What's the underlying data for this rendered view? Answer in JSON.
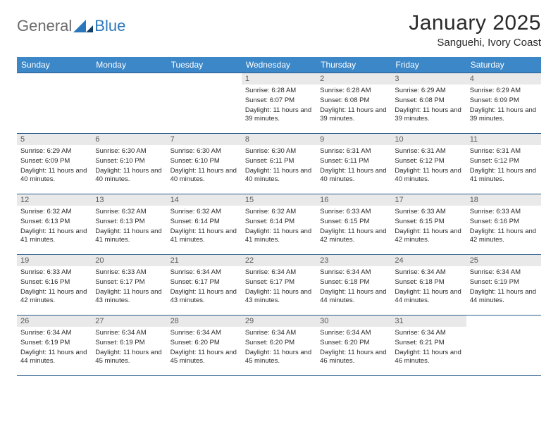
{
  "logo": {
    "general": "General",
    "blue": "Blue"
  },
  "title": "January 2025",
  "location": "Sanguehi, Ivory Coast",
  "colors": {
    "header_bg": "#3b87c8",
    "header_text": "#ffffff",
    "border": "#2c5d8a",
    "daynum_bg": "#e9e9e9",
    "daynum_text": "#5a5a5a",
    "body_text": "#2a2a2a",
    "logo_gray": "#6b6b6b",
    "logo_blue": "#2b77bb"
  },
  "weekdays": [
    "Sunday",
    "Monday",
    "Tuesday",
    "Wednesday",
    "Thursday",
    "Friday",
    "Saturday"
  ],
  "weeks": [
    [
      {
        "day": null
      },
      {
        "day": null
      },
      {
        "day": null
      },
      {
        "day": "1",
        "sunrise": "6:28 AM",
        "sunset": "6:07 PM",
        "daylight": "11 hours and 39 minutes."
      },
      {
        "day": "2",
        "sunrise": "6:28 AM",
        "sunset": "6:08 PM",
        "daylight": "11 hours and 39 minutes."
      },
      {
        "day": "3",
        "sunrise": "6:29 AM",
        "sunset": "6:08 PM",
        "daylight": "11 hours and 39 minutes."
      },
      {
        "day": "4",
        "sunrise": "6:29 AM",
        "sunset": "6:09 PM",
        "daylight": "11 hours and 39 minutes."
      }
    ],
    [
      {
        "day": "5",
        "sunrise": "6:29 AM",
        "sunset": "6:09 PM",
        "daylight": "11 hours and 40 minutes."
      },
      {
        "day": "6",
        "sunrise": "6:30 AM",
        "sunset": "6:10 PM",
        "daylight": "11 hours and 40 minutes."
      },
      {
        "day": "7",
        "sunrise": "6:30 AM",
        "sunset": "6:10 PM",
        "daylight": "11 hours and 40 minutes."
      },
      {
        "day": "8",
        "sunrise": "6:30 AM",
        "sunset": "6:11 PM",
        "daylight": "11 hours and 40 minutes."
      },
      {
        "day": "9",
        "sunrise": "6:31 AM",
        "sunset": "6:11 PM",
        "daylight": "11 hours and 40 minutes."
      },
      {
        "day": "10",
        "sunrise": "6:31 AM",
        "sunset": "6:12 PM",
        "daylight": "11 hours and 40 minutes."
      },
      {
        "day": "11",
        "sunrise": "6:31 AM",
        "sunset": "6:12 PM",
        "daylight": "11 hours and 41 minutes."
      }
    ],
    [
      {
        "day": "12",
        "sunrise": "6:32 AM",
        "sunset": "6:13 PM",
        "daylight": "11 hours and 41 minutes."
      },
      {
        "day": "13",
        "sunrise": "6:32 AM",
        "sunset": "6:13 PM",
        "daylight": "11 hours and 41 minutes."
      },
      {
        "day": "14",
        "sunrise": "6:32 AM",
        "sunset": "6:14 PM",
        "daylight": "11 hours and 41 minutes."
      },
      {
        "day": "15",
        "sunrise": "6:32 AM",
        "sunset": "6:14 PM",
        "daylight": "11 hours and 41 minutes."
      },
      {
        "day": "16",
        "sunrise": "6:33 AM",
        "sunset": "6:15 PM",
        "daylight": "11 hours and 42 minutes."
      },
      {
        "day": "17",
        "sunrise": "6:33 AM",
        "sunset": "6:15 PM",
        "daylight": "11 hours and 42 minutes."
      },
      {
        "day": "18",
        "sunrise": "6:33 AM",
        "sunset": "6:16 PM",
        "daylight": "11 hours and 42 minutes."
      }
    ],
    [
      {
        "day": "19",
        "sunrise": "6:33 AM",
        "sunset": "6:16 PM",
        "daylight": "11 hours and 42 minutes."
      },
      {
        "day": "20",
        "sunrise": "6:33 AM",
        "sunset": "6:17 PM",
        "daylight": "11 hours and 43 minutes."
      },
      {
        "day": "21",
        "sunrise": "6:34 AM",
        "sunset": "6:17 PM",
        "daylight": "11 hours and 43 minutes."
      },
      {
        "day": "22",
        "sunrise": "6:34 AM",
        "sunset": "6:17 PM",
        "daylight": "11 hours and 43 minutes."
      },
      {
        "day": "23",
        "sunrise": "6:34 AM",
        "sunset": "6:18 PM",
        "daylight": "11 hours and 44 minutes."
      },
      {
        "day": "24",
        "sunrise": "6:34 AM",
        "sunset": "6:18 PM",
        "daylight": "11 hours and 44 minutes."
      },
      {
        "day": "25",
        "sunrise": "6:34 AM",
        "sunset": "6:19 PM",
        "daylight": "11 hours and 44 minutes."
      }
    ],
    [
      {
        "day": "26",
        "sunrise": "6:34 AM",
        "sunset": "6:19 PM",
        "daylight": "11 hours and 44 minutes."
      },
      {
        "day": "27",
        "sunrise": "6:34 AM",
        "sunset": "6:19 PM",
        "daylight": "11 hours and 45 minutes."
      },
      {
        "day": "28",
        "sunrise": "6:34 AM",
        "sunset": "6:20 PM",
        "daylight": "11 hours and 45 minutes."
      },
      {
        "day": "29",
        "sunrise": "6:34 AM",
        "sunset": "6:20 PM",
        "daylight": "11 hours and 45 minutes."
      },
      {
        "day": "30",
        "sunrise": "6:34 AM",
        "sunset": "6:20 PM",
        "daylight": "11 hours and 46 minutes."
      },
      {
        "day": "31",
        "sunrise": "6:34 AM",
        "sunset": "6:21 PM",
        "daylight": "11 hours and 46 minutes."
      },
      {
        "day": null
      }
    ]
  ],
  "labels": {
    "sunrise": "Sunrise:",
    "sunset": "Sunset:",
    "daylight": "Daylight:"
  }
}
